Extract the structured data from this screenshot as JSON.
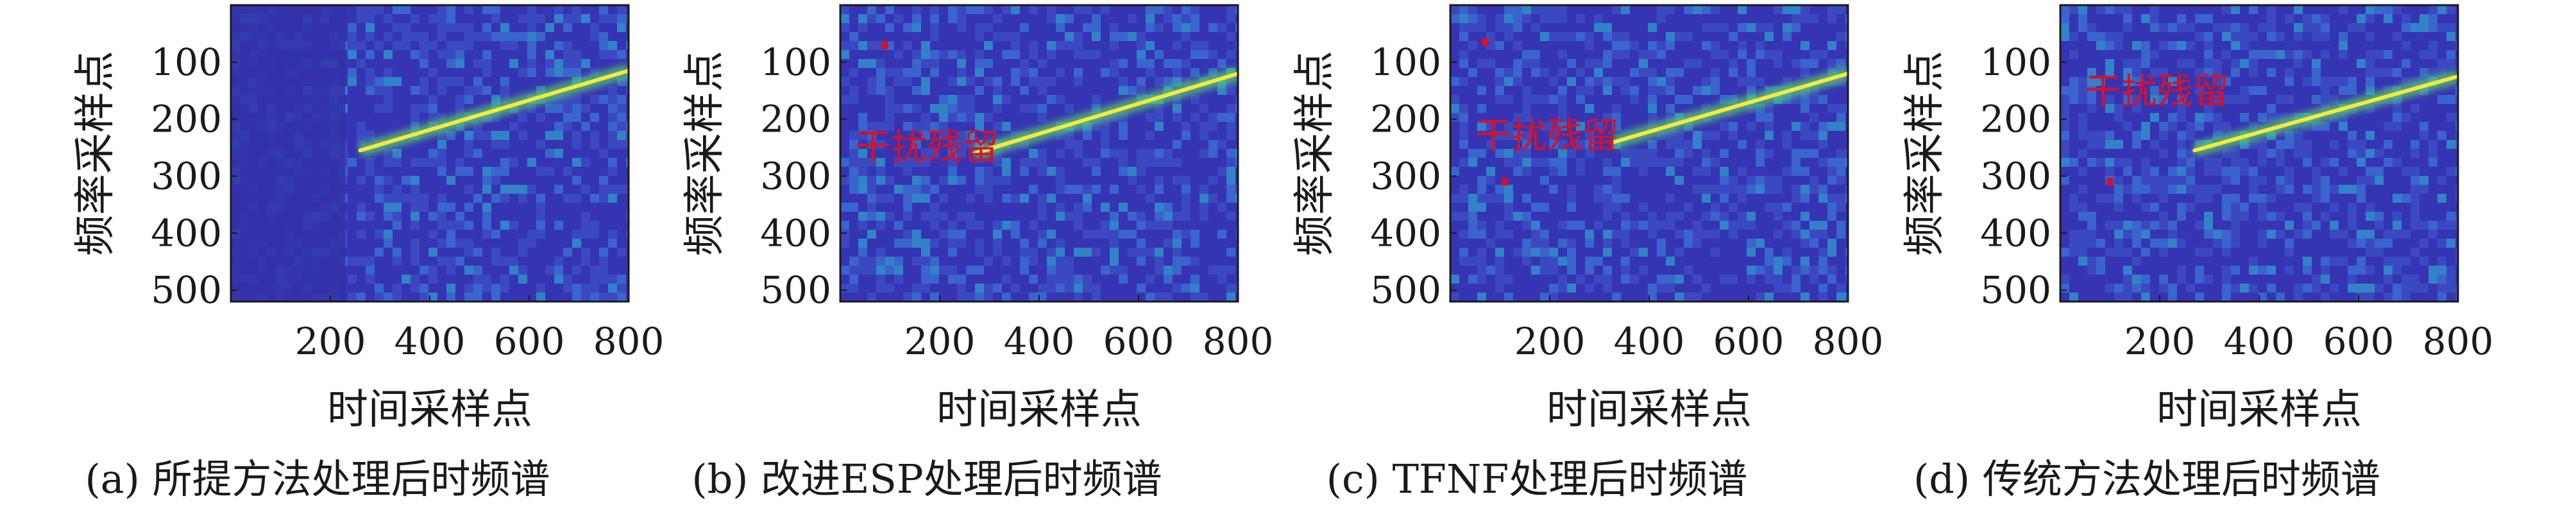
{
  "figure": {
    "xlabel": "时间采样点",
    "ylabel": "频率采样点"
  },
  "chart_data": [
    {
      "type": "heatmap",
      "caption": "(a) 所提方法处理后时频谱",
      "xlabel": "时间采样点",
      "ylabel": "频率采样点",
      "xlim": [
        0,
        800
      ],
      "ylim": [
        520,
        0
      ],
      "x_ticks": [
        200,
        400,
        600,
        800
      ],
      "y_ticks": [
        100,
        200,
        300,
        400,
        500
      ],
      "signal_line": {
        "x": [
          260,
          800
        ],
        "y": [
          255,
          115
        ]
      },
      "residual_band_x": [
        0,
        230
      ],
      "annotation": "",
      "red_points": []
    },
    {
      "type": "heatmap",
      "caption": "(b) 改进ESP处理后时频谱",
      "xlabel": "时间采样点",
      "ylabel": "频率采样点",
      "xlim": [
        0,
        800
      ],
      "ylim": [
        520,
        0
      ],
      "x_ticks": [
        200,
        400,
        600,
        800
      ],
      "y_ticks": [
        100,
        200,
        300,
        400,
        500
      ],
      "signal_line": {
        "x": [
          270,
          800
        ],
        "y": [
          260,
          120
        ]
      },
      "residual_band_x": [],
      "annotation": "干扰残留",
      "annotation_at": {
        "x": 30,
        "y": 248
      },
      "red_points": [
        {
          "x": 90,
          "y": 70
        }
      ]
    },
    {
      "type": "heatmap",
      "caption": "(c) TFNF处理后时频谱",
      "xlabel": "时间采样点",
      "ylabel": "频率采样点",
      "xlim": [
        0,
        800
      ],
      "ylim": [
        520,
        0
      ],
      "x_ticks": [
        200,
        400,
        600,
        800
      ],
      "y_ticks": [
        100,
        200,
        300,
        400,
        500
      ],
      "signal_line": {
        "x": [
          330,
          800
        ],
        "y": [
          240,
          120
        ]
      },
      "residual_band_x": [],
      "annotation": "干扰残留",
      "annotation_at": {
        "x": 50,
        "y": 228
      },
      "red_points": [
        {
          "x": 70,
          "y": 65
        },
        {
          "x": 110,
          "y": 310
        }
      ]
    },
    {
      "type": "heatmap",
      "caption": "(d) 传统方法处理后时频谱",
      "xlabel": "时间采样点",
      "ylabel": "频率采样点",
      "xlim": [
        0,
        800
      ],
      "ylim": [
        520,
        0
      ],
      "x_ticks": [
        200,
        400,
        600,
        800
      ],
      "y_ticks": [
        100,
        200,
        300,
        400,
        500
      ],
      "signal_line": {
        "x": [
          270,
          800
        ],
        "y": [
          255,
          125
        ]
      },
      "residual_band_x": [],
      "annotation": "干扰残留",
      "annotation_at": {
        "x": 50,
        "y": 150
      },
      "red_points": [
        {
          "x": 100,
          "y": 310
        }
      ]
    }
  ],
  "colors": {
    "background": "#3534b3",
    "noise_low": "#3f59c8",
    "noise_mid": "#3d8ee0",
    "noise_high": "#2fc3d8",
    "line_green": "#5ad36a",
    "line_core": "#f4ea3a",
    "residual": "#d8102a"
  }
}
